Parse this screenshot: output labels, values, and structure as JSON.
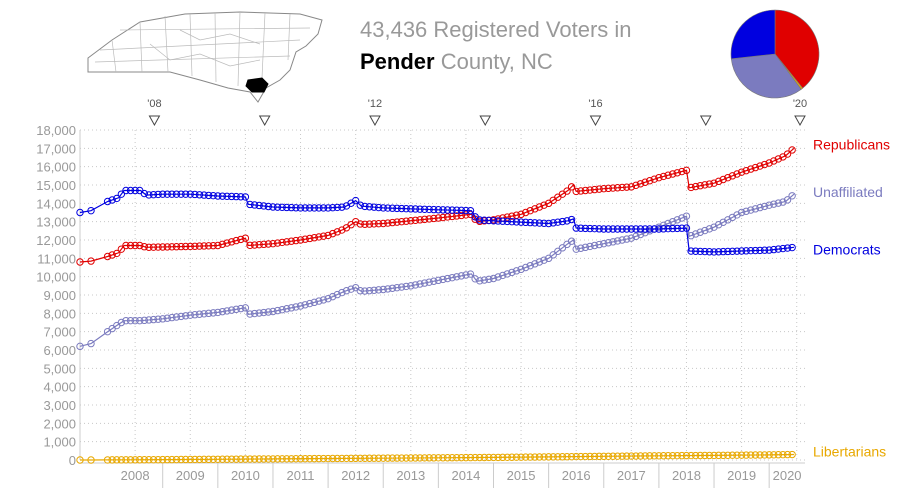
{
  "title": {
    "line1": "43,436 Registered Voters in",
    "county": "Pender",
    "line2_rest": " County, NC"
  },
  "colors": {
    "republicans": "#e00000",
    "democrats": "#0000e0",
    "unaffiliated": "#7b7bbf",
    "libertarians": "#e8a800",
    "axis_text": "#999999"
  },
  "chart_data": {
    "type": "line",
    "x_range": [
      2007.5,
      2020.65
    ],
    "ylim": [
      0,
      18000
    ],
    "y_ticks": [
      0,
      1000,
      2000,
      3000,
      4000,
      5000,
      6000,
      7000,
      8000,
      9000,
      10000,
      11000,
      12000,
      13000,
      14000,
      15000,
      16000,
      17000,
      18000
    ],
    "y_tick_labels": [
      "0",
      "1,000",
      "2,000",
      "3,000",
      "4,000",
      "5,000",
      "6,000",
      "7,000",
      "8,000",
      "9,000",
      "10,000",
      "11,000",
      "12,000",
      "13,000",
      "14,000",
      "15,000",
      "16,000",
      "17,000",
      "18,000"
    ],
    "year_labels": [
      "2008",
      "2009",
      "2010",
      "2011",
      "2012",
      "2013",
      "2014",
      "2015",
      "2016",
      "2017",
      "2018",
      "2019",
      "2020"
    ],
    "election_markers": [
      {
        "x": 2008.85,
        "label": "'08"
      },
      {
        "x": 2010.85,
        "label": ""
      },
      {
        "x": 2012.85,
        "label": "'12"
      },
      {
        "x": 2014.85,
        "label": ""
      },
      {
        "x": 2016.85,
        "label": "'16"
      },
      {
        "x": 2018.85,
        "label": ""
      },
      {
        "x": 2020.85,
        "label": "'20"
      }
    ],
    "series": [
      {
        "name": "Republicans",
        "key": "republicans",
        "points": [
          [
            2007.5,
            10800
          ],
          [
            2007.7,
            10850
          ],
          [
            2008.0,
            11100
          ],
          [
            2008.2,
            11300
          ],
          [
            2008.3,
            11700
          ],
          [
            2008.6,
            11700
          ],
          [
            2008.7,
            11600
          ],
          [
            2009.5,
            11650
          ],
          [
            2010.0,
            11700
          ],
          [
            2010.5,
            12100
          ],
          [
            2010.55,
            11700
          ],
          [
            2011.0,
            11800
          ],
          [
            2011.5,
            12000
          ],
          [
            2012.0,
            12250
          ],
          [
            2012.3,
            12600
          ],
          [
            2012.5,
            13000
          ],
          [
            2012.6,
            12850
          ],
          [
            2013.0,
            12900
          ],
          [
            2014.0,
            13200
          ],
          [
            2014.6,
            13400
          ],
          [
            2014.7,
            13000
          ],
          [
            2015.0,
            13100
          ],
          [
            2015.5,
            13400
          ],
          [
            2016.0,
            14000
          ],
          [
            2016.35,
            14700
          ],
          [
            2016.45,
            15000
          ],
          [
            2016.5,
            14650
          ],
          [
            2017.0,
            14800
          ],
          [
            2017.5,
            14900
          ],
          [
            2018.0,
            15400
          ],
          [
            2018.5,
            15800
          ],
          [
            2018.55,
            14850
          ],
          [
            2019.0,
            15100
          ],
          [
            2019.5,
            15700
          ],
          [
            2020.0,
            16200
          ],
          [
            2020.3,
            16600
          ],
          [
            2020.45,
            17000
          ]
        ]
      },
      {
        "name": "Unaffiliated",
        "key": "unaffiliated",
        "points": [
          [
            2007.5,
            6200
          ],
          [
            2007.7,
            6350
          ],
          [
            2008.0,
            7000
          ],
          [
            2008.2,
            7400
          ],
          [
            2008.3,
            7600
          ],
          [
            2008.6,
            7600
          ],
          [
            2009.0,
            7700
          ],
          [
            2009.5,
            7900
          ],
          [
            2010.0,
            8050
          ],
          [
            2010.5,
            8300
          ],
          [
            2010.55,
            7950
          ],
          [
            2011.0,
            8100
          ],
          [
            2011.5,
            8400
          ],
          [
            2012.0,
            8800
          ],
          [
            2012.3,
            9200
          ],
          [
            2012.5,
            9400
          ],
          [
            2012.6,
            9200
          ],
          [
            2013.0,
            9300
          ],
          [
            2013.5,
            9500
          ],
          [
            2014.0,
            9800
          ],
          [
            2014.6,
            10150
          ],
          [
            2014.7,
            9750
          ],
          [
            2015.0,
            9900
          ],
          [
            2015.5,
            10400
          ],
          [
            2016.0,
            11000
          ],
          [
            2016.35,
            11800
          ],
          [
            2016.45,
            12000
          ],
          [
            2016.5,
            11500
          ],
          [
            2017.0,
            11800
          ],
          [
            2017.5,
            12100
          ],
          [
            2018.0,
            12700
          ],
          [
            2018.5,
            13300
          ],
          [
            2018.55,
            12200
          ],
          [
            2019.0,
            12700
          ],
          [
            2019.5,
            13500
          ],
          [
            2020.0,
            13900
          ],
          [
            2020.3,
            14100
          ],
          [
            2020.45,
            14500
          ]
        ]
      },
      {
        "name": "Democrats",
        "key": "democrats",
        "points": [
          [
            2007.5,
            13500
          ],
          [
            2007.7,
            13600
          ],
          [
            2008.0,
            14100
          ],
          [
            2008.2,
            14300
          ],
          [
            2008.3,
            14700
          ],
          [
            2008.6,
            14700
          ],
          [
            2008.7,
            14450
          ],
          [
            2009.0,
            14500
          ],
          [
            2009.5,
            14500
          ],
          [
            2010.0,
            14400
          ],
          [
            2010.5,
            14350
          ],
          [
            2010.55,
            13950
          ],
          [
            2011.0,
            13800
          ],
          [
            2011.5,
            13750
          ],
          [
            2012.0,
            13750
          ],
          [
            2012.3,
            13800
          ],
          [
            2012.5,
            14150
          ],
          [
            2012.6,
            13850
          ],
          [
            2013.0,
            13750
          ],
          [
            2014.0,
            13650
          ],
          [
            2014.6,
            13600
          ],
          [
            2014.7,
            13100
          ],
          [
            2015.0,
            13050
          ],
          [
            2016.0,
            12900
          ],
          [
            2016.35,
            13050
          ],
          [
            2016.45,
            13150
          ],
          [
            2016.5,
            12650
          ],
          [
            2017.0,
            12600
          ],
          [
            2018.0,
            12600
          ],
          [
            2018.5,
            12650
          ],
          [
            2018.55,
            11400
          ],
          [
            2019.0,
            11350
          ],
          [
            2019.5,
            11400
          ],
          [
            2020.0,
            11450
          ],
          [
            2020.45,
            11600
          ]
        ]
      },
      {
        "name": "Libertarians",
        "key": "libertarians",
        "points": [
          [
            2007.5,
            0
          ],
          [
            2007.7,
            0
          ],
          [
            2008.0,
            5
          ],
          [
            2009.0,
            20
          ],
          [
            2010.0,
            40
          ],
          [
            2011.0,
            60
          ],
          [
            2012.0,
            80
          ],
          [
            2013.0,
            100
          ],
          [
            2014.0,
            120
          ],
          [
            2015.0,
            140
          ],
          [
            2016.0,
            170
          ],
          [
            2017.0,
            200
          ],
          [
            2018.0,
            230
          ],
          [
            2019.0,
            250
          ],
          [
            2020.0,
            280
          ],
          [
            2020.45,
            300
          ]
        ]
      }
    ],
    "pie": {
      "slices": [
        {
          "name": "Republicans",
          "key": "republicans",
          "value": 17000
        },
        {
          "name": "Libertarians",
          "key": "libertarians",
          "value": 300
        },
        {
          "name": "Unaffiliated",
          "key": "unaffiliated",
          "value": 14500
        },
        {
          "name": "Democrats",
          "key": "democrats",
          "value": 11600
        }
      ]
    },
    "grid": true
  }
}
